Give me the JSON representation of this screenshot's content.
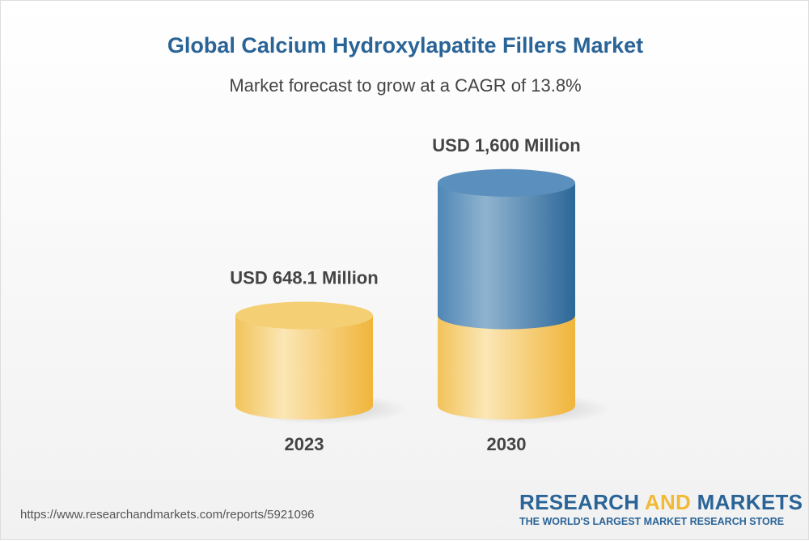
{
  "title": "Global Calcium Hydroxylapatite Fillers Market",
  "subtitle": "Market forecast to grow at a CAGR of 13.8%",
  "url": "https://www.researchandmarkets.com/reports/5921096",
  "logo": {
    "word1": "RESEARCH",
    "word2": "AND",
    "word3": "MARKETS",
    "tagline": "THE WORLD'S LARGEST MARKET RESEARCH STORE"
  },
  "colors": {
    "title": "#2a6497",
    "base": "#f2b935",
    "growth": "#3a78ab",
    "logo_accent": "#f2b935"
  },
  "chart_data": {
    "type": "bar",
    "style": "3d-cylinder",
    "categories": [
      "2023",
      "2030"
    ],
    "values": [
      648.1,
      1600
    ],
    "labels": [
      "USD 648.1 Million",
      "USD 1,600 Million"
    ],
    "unit": "USD Million",
    "grid": false
  }
}
